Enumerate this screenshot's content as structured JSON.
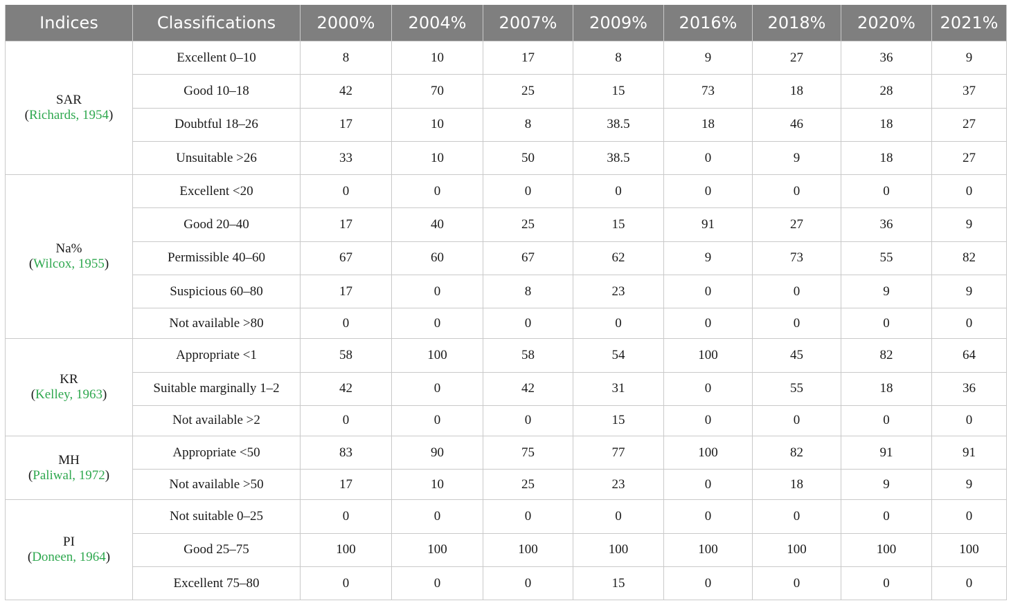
{
  "table": {
    "headers": [
      "Indices",
      "Classifications",
      "2000%",
      "2004%",
      "2007%",
      "2009%",
      "2016%",
      "2018%",
      "2020%",
      "2021%"
    ],
    "groups": [
      {
        "name": "SAR",
        "ref": "Richards, 1954",
        "rows": [
          {
            "label": "Excellent 0–10",
            "values": [
              "8",
              "10",
              "17",
              "8",
              "9",
              "27",
              "36",
              "9"
            ]
          },
          {
            "label": "Good 10–18",
            "values": [
              "42",
              "70",
              "25",
              "15",
              "73",
              "18",
              "28",
              "37"
            ]
          },
          {
            "label": "Doubtful 18–26",
            "values": [
              "17",
              "10",
              "8",
              "38.5",
              "18",
              "46",
              "18",
              "27"
            ]
          },
          {
            "label": "Unsuitable >26",
            "values": [
              "33",
              "10",
              "50",
              "38.5",
              "0",
              "9",
              "18",
              "27"
            ]
          }
        ]
      },
      {
        "name": "Na%",
        "ref": "Wilcox, 1955",
        "rows": [
          {
            "label": "Excellent <20",
            "values": [
              "0",
              "0",
              "0",
              "0",
              "0",
              "0",
              "0",
              "0"
            ]
          },
          {
            "label": "Good 20–40",
            "values": [
              "17",
              "40",
              "25",
              "15",
              "91",
              "27",
              "36",
              "9"
            ]
          },
          {
            "label": "Permissible 40–60",
            "values": [
              "67",
              "60",
              "67",
              "62",
              "9",
              "73",
              "55",
              "82"
            ]
          },
          {
            "label": "Suspicious 60–80",
            "values": [
              "17",
              "0",
              "8",
              "23",
              "0",
              "0",
              "9",
              "9"
            ]
          },
          {
            "label": "Not available >80",
            "values": [
              "0",
              "0",
              "0",
              "0",
              "0",
              "0",
              "0",
              "0"
            ]
          }
        ]
      },
      {
        "name": "KR",
        "ref": "Kelley, 1963",
        "rows": [
          {
            "label": "Appropriate <1",
            "values": [
              "58",
              "100",
              "58",
              "54",
              "100",
              "45",
              "82",
              "64"
            ]
          },
          {
            "label": "Suitable marginally 1–2",
            "values": [
              "42",
              "0",
              "42",
              "31",
              "0",
              "55",
              "18",
              "36"
            ]
          },
          {
            "label": "Not available >2",
            "values": [
              "0",
              "0",
              "0",
              "15",
              "0",
              "0",
              "0",
              "0"
            ]
          }
        ]
      },
      {
        "name": "MH",
        "ref": "Paliwal, 1972",
        "rows": [
          {
            "label": "Appropriate <50",
            "values": [
              "83",
              "90",
              "75",
              "77",
              "100",
              "82",
              "91",
              "91"
            ]
          },
          {
            "label": "Not available >50",
            "values": [
              "17",
              "10",
              "25",
              "23",
              "0",
              "18",
              "9",
              "9"
            ]
          }
        ]
      },
      {
        "name": "PI",
        "ref": "Doneen, 1964",
        "rows": [
          {
            "label": "Not suitable 0–25",
            "values": [
              "0",
              "0",
              "0",
              "0",
              "0",
              "0",
              "0",
              "0"
            ]
          },
          {
            "label": "Good 25–75",
            "values": [
              "100",
              "100",
              "100",
              "100",
              "100",
              "100",
              "100",
              "100"
            ]
          },
          {
            "label": "Excellent 75–80",
            "values": [
              "0",
              "0",
              "0",
              "15",
              "0",
              "0",
              "0",
              "0"
            ]
          }
        ]
      }
    ]
  },
  "colors": {
    "header_bg": "#7f7f7f",
    "header_text": "#ffffff",
    "reference_link": "#2fa84f",
    "grid": "#c9c9c9"
  }
}
